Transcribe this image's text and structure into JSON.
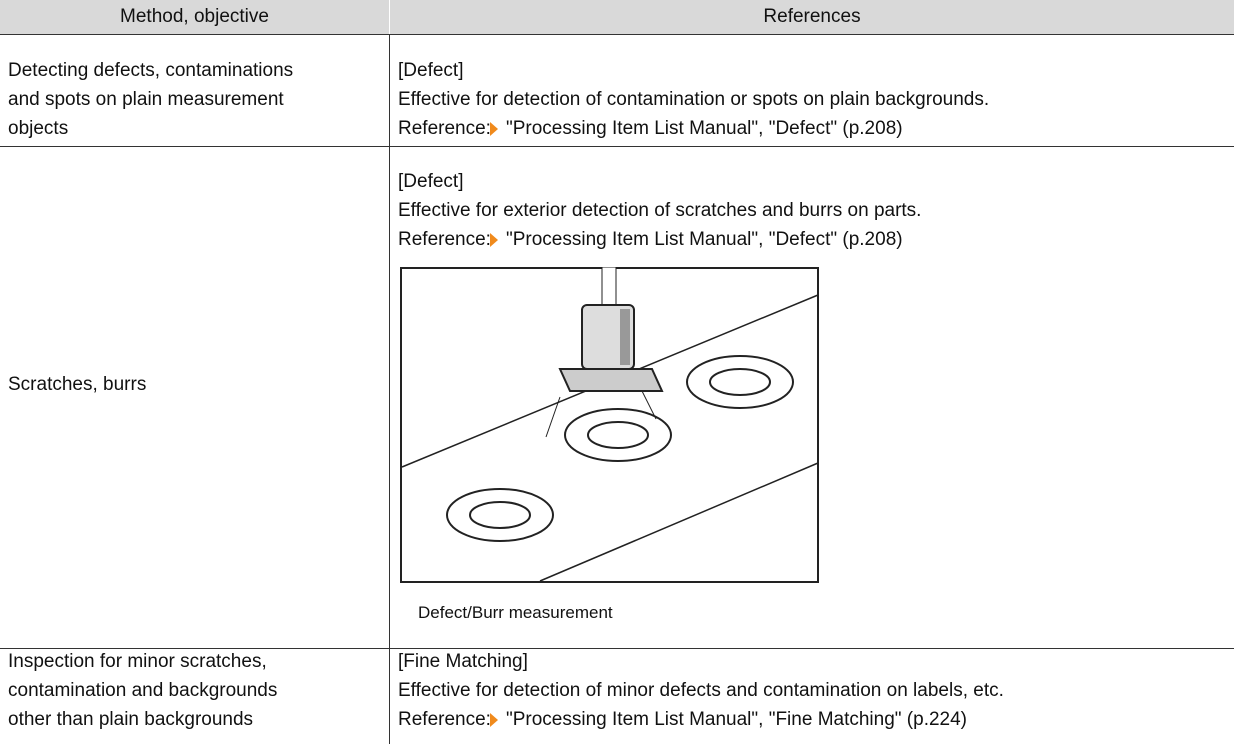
{
  "table": {
    "header": [
      "Method, objective",
      "References"
    ],
    "rows": [
      {
        "method": [
          "Detecting defects, contaminations",
          "and spots on plain measurement",
          "objects"
        ],
        "title": "[Defect]",
        "description": "Effective for detection of contamination or spots on plain backgrounds.",
        "reference_prefix": "Reference:",
        "reference": "\"Processing Item List Manual\", \"Defect\" (p.208)"
      },
      {
        "method": [
          "Scratches, burrs"
        ],
        "title": "[Defect]",
        "description": "Effective for exterior detection of scratches and burrs on parts.",
        "reference_prefix": "Reference:",
        "reference": "\"Processing Item List Manual\", \"Defect\" (p.208)",
        "figure_caption": "Defect/Burr measurement"
      },
      {
        "method": [
          "Inspection for minor scratches,",
          "contamination and backgrounds",
          "other than plain backgrounds"
        ],
        "title": "[Fine Matching]",
        "description": "Effective for detection of minor defects and contamination on labels, etc.",
        "reference_prefix": "Reference:",
        "reference": "\"Processing Item List Manual\", \"Fine Matching\" (p.224)"
      }
    ]
  }
}
